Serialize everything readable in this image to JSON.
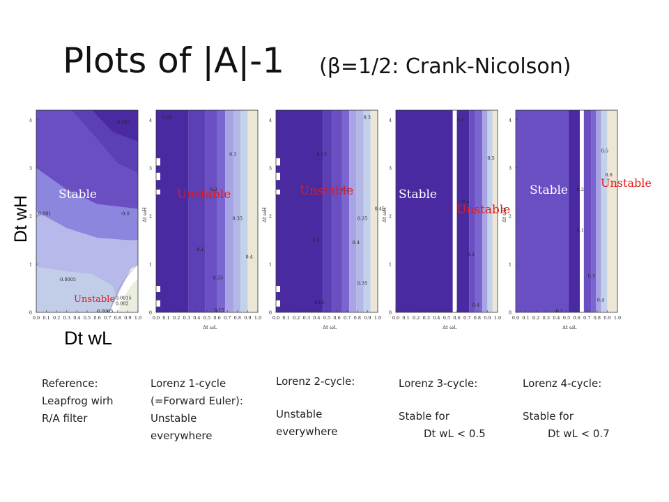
{
  "title": {
    "main": "Plots of |A|-1",
    "sub": "(β=1/2: Crank-Nicolson)"
  },
  "axis_labels": {
    "y_big": "Dt wH",
    "x_big": "Dt wL"
  },
  "colors": {
    "deep_purple": "#4a2aa1",
    "mid_purple": "#6a4fc2",
    "light_purple": "#9389dc",
    "pale_blue": "#c4d1ea",
    "cream": "#ebe6d6",
    "red_label": "#e01b1b"
  },
  "chart_data": [
    {
      "type": "heatmap",
      "panel": "reference",
      "x_ticks": [
        "0.0",
        "0.1",
        "0.2",
        "0.3",
        "0.4",
        "0.5",
        "0.6",
        "0.7",
        "0.8",
        "0.9",
        "1.0"
      ],
      "y_ticks": [
        "0",
        "1",
        "2",
        "3",
        "4"
      ],
      "xlim": [
        0,
        1
      ],
      "ylim": [
        0,
        4.2
      ],
      "contour_labels": [
        "-0.002",
        "0.001",
        "-0.0",
        "-0.0005",
        "0.0015",
        "0.002",
        "0.0005"
      ],
      "region_labels": [
        "Stable",
        "Unstable"
      ],
      "caption": [
        "Reference:",
        "Leapfrog wirh",
        "R/A filter"
      ]
    },
    {
      "type": "heatmap",
      "panel": "lorenz-1",
      "x_ticks": [
        "0.0",
        "0.1",
        "0.2",
        "0.3",
        "0.4",
        "0.5",
        "0.6",
        "0.7",
        "0.8",
        "0.9",
        "1.0"
      ],
      "y_ticks": [
        "0",
        "1",
        "2",
        "3",
        "4"
      ],
      "xlim": [
        0,
        1
      ],
      "ylim": [
        0,
        4.2
      ],
      "xlabel": "Δt ωL",
      "ylabel": "Δt ωH",
      "contour_labels": [
        "0.05",
        "0.3",
        "0.2",
        "0.35",
        "0.1",
        "0.4",
        "0.25",
        "0.15"
      ],
      "region_labels": [
        "Unstable"
      ],
      "caption": [
        "Lorenz 1-cycle",
        "(=Forward Euler):",
        "Unstable",
        "everywhere"
      ]
    },
    {
      "type": "heatmap",
      "panel": "lorenz-2",
      "x_ticks": [
        "0.0",
        "0.1",
        "0.2",
        "0.3",
        "0.4",
        "0.5",
        "0.6",
        "0.7",
        "0.8",
        "0.9",
        "1.0"
      ],
      "y_ticks": [
        "0",
        "1",
        "2",
        "3",
        "4"
      ],
      "xlim": [
        0,
        1
      ],
      "ylim": [
        0,
        4.2
      ],
      "xlabel": "Δt ωL",
      "ylabel": "Δt ωH",
      "contour_labels": [
        "0.3",
        "0.15",
        "0.2",
        "0.25",
        "0.45",
        "0.1",
        "0.4",
        "0.35",
        "0.05"
      ],
      "region_labels": [
        "Unstable"
      ],
      "caption": [
        "Lorenz 2-cycle:",
        "",
        "Unstable",
        "everywhere"
      ]
    },
    {
      "type": "heatmap",
      "panel": "lorenz-3",
      "x_ticks": [
        "0.0",
        "0.1",
        "0.2",
        "0.3",
        "0.4",
        "0.5",
        "0.6",
        "0.7",
        "0.8",
        "0.9",
        "1.0"
      ],
      "y_ticks": [
        "0",
        "1",
        "2",
        "3",
        "4"
      ],
      "xlim": [
        0,
        1
      ],
      "ylim": [
        0,
        4.2
      ],
      "xlabel": "Δt ωL",
      "ylabel": "Δt ωH",
      "contour_labels": [
        "0.1",
        "0.5",
        "0.2",
        "0.3",
        "0.4"
      ],
      "region_labels": [
        "Stable",
        "Unstable"
      ],
      "caption": [
        "Lorenz 3-cycle:",
        "",
        "Stable for",
        "Dt wL < 0.5"
      ]
    },
    {
      "type": "heatmap",
      "panel": "lorenz-4",
      "x_ticks": [
        "0.0",
        "0.1",
        "0.2",
        "0.3",
        "0.4",
        "0.5",
        "0.6",
        "0.7",
        "0.8",
        "0.9",
        "1.0"
      ],
      "y_ticks": [
        "0",
        "1",
        "2",
        "3",
        "4"
      ],
      "xlim": [
        0,
        1
      ],
      "ylim": [
        0,
        4.2
      ],
      "xlabel": "Δt ωL",
      "ylabel": "Δt ωH",
      "contour_labels": [
        "0.5",
        "0.6",
        "0.2",
        "0.1",
        "0.3",
        "0.4",
        "-0.1"
      ],
      "region_labels": [
        "Stable",
        "Unstable"
      ],
      "caption": [
        "Lorenz 4-cycle:",
        "",
        "Stable for",
        "Dt wL < 0.7"
      ]
    }
  ]
}
